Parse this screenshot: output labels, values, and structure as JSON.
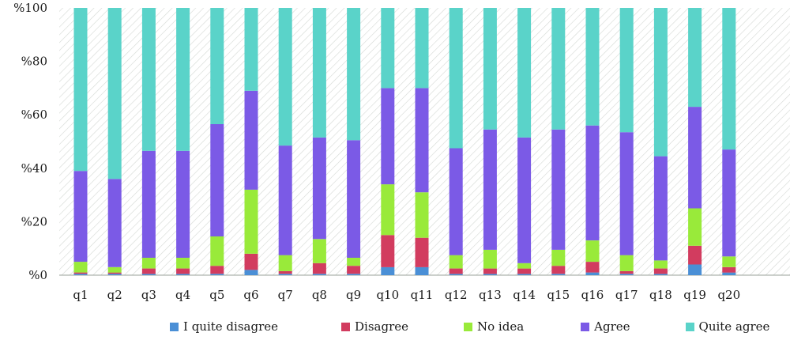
{
  "chart_data": {
    "type": "bar",
    "stacked": true,
    "categories": [
      "q1",
      "q2",
      "q3",
      "q4",
      "q5",
      "q6",
      "q7",
      "q8",
      "q9",
      "q10",
      "q11",
      "q12",
      "q13",
      "q14",
      "q15",
      "q16",
      "q17",
      "q18",
      "q19",
      "q20"
    ],
    "series": [
      {
        "name": "I quite disagree",
        "color": "#4a8fd6",
        "values": [
          0.5,
          0.5,
          0.5,
          0.5,
          0.5,
          2,
          0.5,
          0.5,
          0.5,
          3,
          3,
          0.5,
          0.5,
          0.5,
          0.5,
          1,
          0.5,
          0.5,
          4,
          1
        ]
      },
      {
        "name": "Disagree",
        "color": "#d23c5f",
        "values": [
          0.5,
          0.5,
          2,
          2,
          3,
          6,
          1,
          4,
          3,
          12,
          11,
          2,
          2,
          2,
          3,
          4,
          1,
          2,
          7,
          2
        ]
      },
      {
        "name": "No idea",
        "color": "#99ea3a",
        "values": [
          4,
          2,
          4,
          4,
          11,
          24,
          6,
          9,
          3,
          19,
          17,
          5,
          7,
          2,
          6,
          8,
          6,
          3,
          14,
          4
        ]
      },
      {
        "name": "Agree",
        "color": "#7b5ae6",
        "values": [
          34,
          33,
          40,
          40,
          42,
          37,
          41,
          38,
          44,
          36,
          39,
          40,
          45,
          47,
          45,
          43,
          46,
          39,
          38,
          40
        ]
      },
      {
        "name": "Quite agree",
        "color": "#5ad3c9",
        "values": [
          61,
          64,
          53.5,
          53.5,
          43.5,
          31,
          51.5,
          48.5,
          49.5,
          30,
          30,
          52.5,
          45.5,
          48.5,
          45.5,
          44,
          46.5,
          55.5,
          37,
          53
        ]
      }
    ],
    "y_tick_labels": [
      "%0",
      "%20",
      "%40",
      "%60",
      "%80",
      "%100"
    ],
    "y_ticks": [
      0,
      20,
      40,
      60,
      80,
      100
    ],
    "ylim": [
      0,
      100
    ],
    "legend_position": "bottom",
    "grid": false,
    "plot_background": "hatched"
  }
}
